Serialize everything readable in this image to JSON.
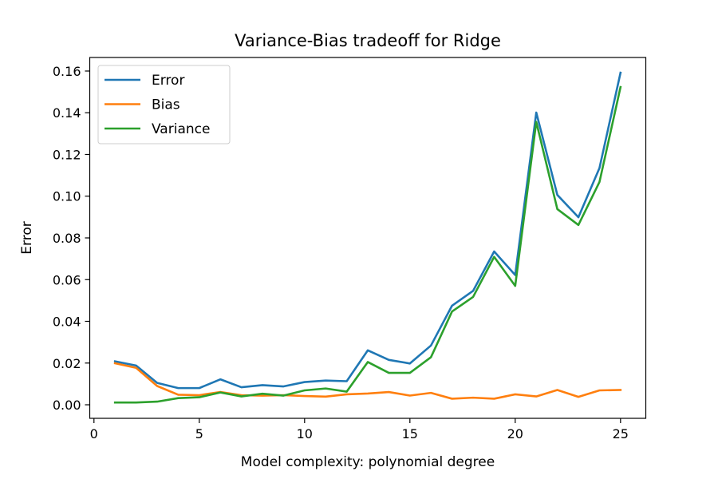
{
  "chart_data": {
    "type": "line",
    "title": "Variance-Bias tradeoff for Ridge",
    "xlabel": "Model complexity: polynomial degree",
    "ylabel": "Error",
    "xlim": [
      -0.2,
      26.2
    ],
    "ylim": [
      -0.0065,
      0.1665
    ],
    "x_ticks": [
      0,
      5,
      10,
      15,
      20,
      25
    ],
    "x_tick_labels": [
      "0",
      "5",
      "10",
      "15",
      "20",
      "25"
    ],
    "y_ticks": [
      0.0,
      0.02,
      0.04,
      0.06,
      0.08,
      0.1,
      0.12,
      0.14,
      0.16
    ],
    "y_tick_labels": [
      "0.00",
      "0.02",
      "0.04",
      "0.06",
      "0.08",
      "0.10",
      "0.12",
      "0.14",
      "0.16"
    ],
    "grid": false,
    "legend_position": "upper-left",
    "x": [
      1,
      2,
      3,
      4,
      5,
      6,
      7,
      8,
      9,
      10,
      11,
      12,
      13,
      14,
      15,
      16,
      17,
      18,
      19,
      20,
      21,
      22,
      23,
      24,
      25
    ],
    "series": [
      {
        "name": "Error",
        "color": "#1f77b4",
        "values": [
          0.0208,
          0.0188,
          0.0105,
          0.008,
          0.008,
          0.0122,
          0.0084,
          0.0094,
          0.0088,
          0.0109,
          0.0116,
          0.0113,
          0.0261,
          0.0215,
          0.0198,
          0.0284,
          0.0475,
          0.0546,
          0.0735,
          0.0622,
          0.1401,
          0.1006,
          0.0899,
          0.1135,
          0.1592
        ]
      },
      {
        "name": "Bias",
        "color": "#ff7f0e",
        "values": [
          0.0199,
          0.0177,
          0.009,
          0.0048,
          0.0046,
          0.0061,
          0.0046,
          0.0044,
          0.0046,
          0.0042,
          0.0039,
          0.005,
          0.0054,
          0.0061,
          0.0044,
          0.0057,
          0.0029,
          0.0034,
          0.0029,
          0.005,
          0.004,
          0.0071,
          0.0038,
          0.0069,
          0.0071
        ]
      },
      {
        "name": "Variance",
        "color": "#2ca02c",
        "values": [
          0.0011,
          0.0011,
          0.0015,
          0.0032,
          0.0036,
          0.0059,
          0.004,
          0.0053,
          0.0044,
          0.0069,
          0.0078,
          0.0063,
          0.0205,
          0.0153,
          0.0153,
          0.0228,
          0.0447,
          0.0517,
          0.0709,
          0.057,
          0.1356,
          0.0938,
          0.0862,
          0.1068,
          0.1523
        ]
      }
    ]
  }
}
